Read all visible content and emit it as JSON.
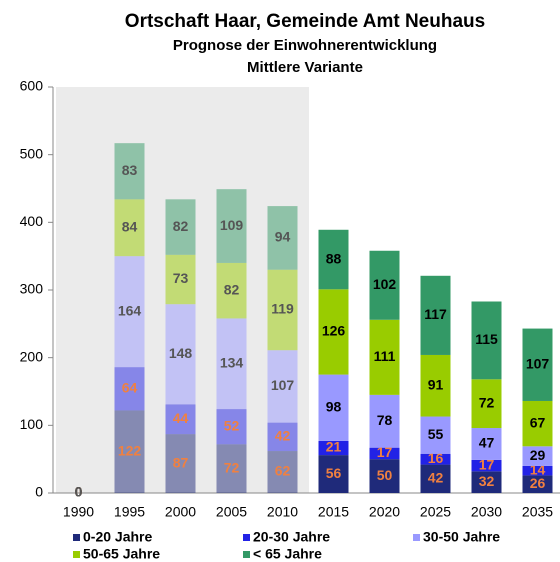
{
  "chart_data": {
    "type": "stacked_bar",
    "title": "Ortschaft Haar, Gemeinde Amt Neuhaus",
    "subtitle": [
      "Prognose der Einwohnerentwicklung",
      "Mittlere Variante"
    ],
    "categories": [
      "1990",
      "1995",
      "2000",
      "2005",
      "2010",
      "2015",
      "2020",
      "2025",
      "2030",
      "2035"
    ],
    "series": [
      {
        "name": "0-20 Jahre",
        "color": "#1f2a7a",
        "values": [
          0,
          122,
          87,
          72,
          62,
          56,
          50,
          42,
          32,
          26
        ]
      },
      {
        "name": "20-30 Jahre",
        "color": "#2222e6",
        "values": [
          0,
          64,
          44,
          52,
          42,
          21,
          17,
          16,
          17,
          14
        ]
      },
      {
        "name": "30-50 Jahre",
        "color": "#9999ff",
        "values": [
          0,
          164,
          148,
          134,
          107,
          98,
          78,
          55,
          47,
          29
        ]
      },
      {
        "name": "50-65 Jahre",
        "color": "#99cc00",
        "values": [
          0,
          84,
          73,
          82,
          119,
          126,
          111,
          91,
          72,
          67
        ]
      },
      {
        "name": "< 65 Jahre",
        "color": "#339966",
        "values": [
          0,
          83,
          82,
          109,
          94,
          88,
          102,
          117,
          115,
          107
        ]
      }
    ],
    "ylim": [
      0,
      600
    ],
    "yticks": [
      0,
      100,
      200,
      300,
      400,
      500,
      600
    ],
    "grid": false
  }
}
